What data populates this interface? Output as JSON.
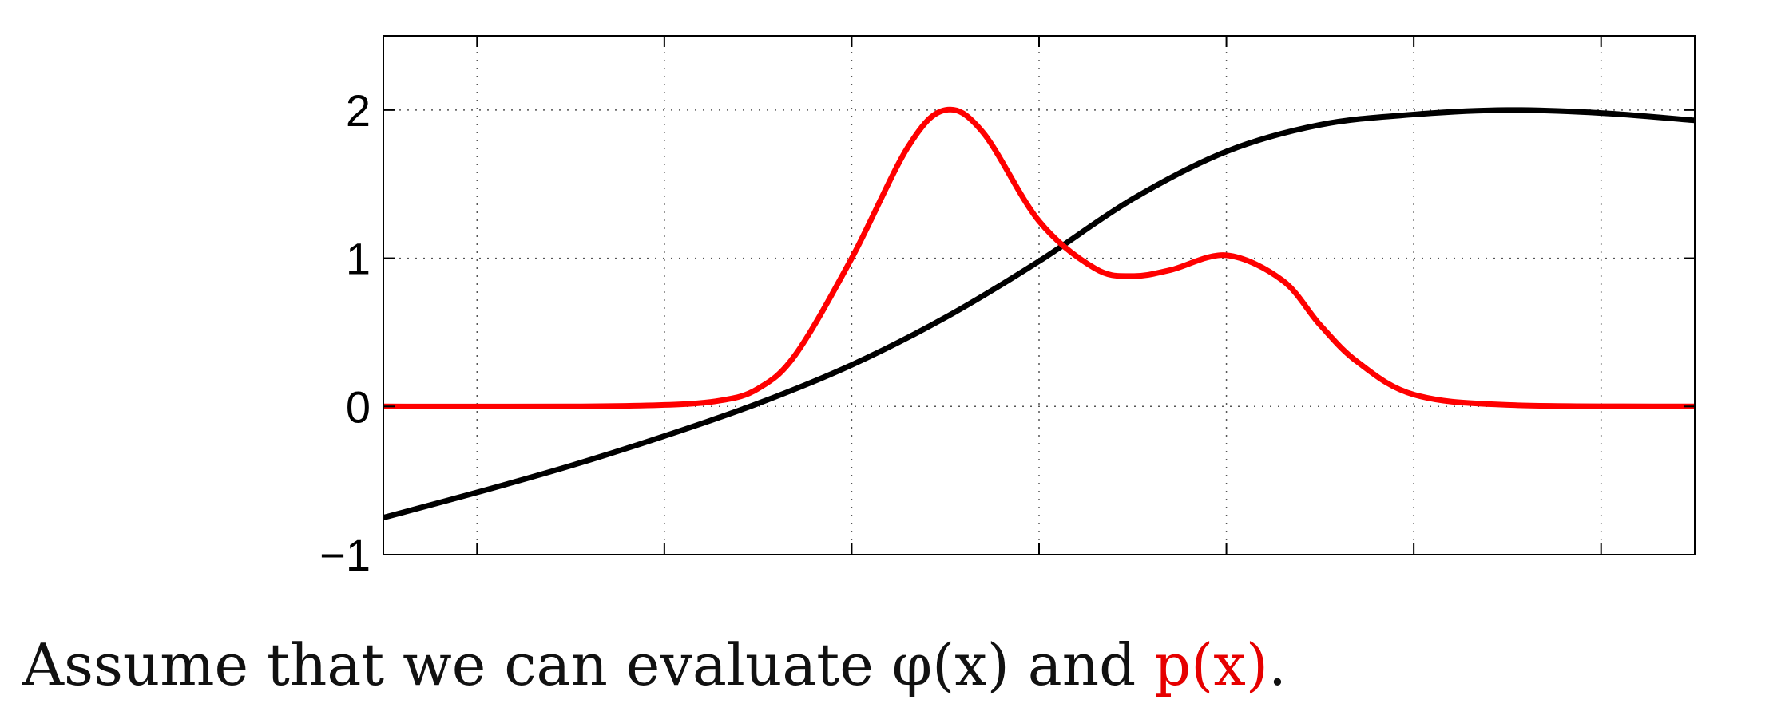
{
  "chart_data": {
    "type": "line",
    "title": "",
    "xlabel": "",
    "ylabel": "",
    "xlim": [
      0,
      7
    ],
    "ylim": [
      -1,
      2.5
    ],
    "x_ticks": [
      0.5,
      1.5,
      2.5,
      3.5,
      4.5,
      5.5,
      6.5
    ],
    "y_ticks": [
      -1,
      0,
      1,
      2
    ],
    "y_tick_labels": [
      "−1",
      "0",
      "1",
      "2"
    ],
    "grid": true,
    "grid_style": "dotted",
    "series": [
      {
        "name": "",
        "color": "#000000",
        "x": [
          0,
          0.5,
          1,
          1.5,
          2,
          2.5,
          3,
          3.5,
          4,
          4.5,
          5,
          5.5,
          6,
          6.5,
          7
        ],
        "y": [
          -0.75,
          -0.58,
          -0.4,
          -0.2,
          0.02,
          0.28,
          0.6,
          0.98,
          1.4,
          1.72,
          1.9,
          1.97,
          2.0,
          1.98,
          1.93
        ]
      },
      {
        "name": "",
        "color": "#ff0000",
        "x": [
          0,
          1,
          1.5,
          1.8,
          2.0,
          2.2,
          2.5,
          2.8,
          3.0,
          3.2,
          3.5,
          3.8,
          4.0,
          4.2,
          4.5,
          4.8,
          5.0,
          5.2,
          5.5,
          6,
          7
        ],
        "y": [
          0,
          0,
          0.01,
          0.04,
          0.12,
          0.35,
          1.0,
          1.75,
          2.0,
          1.85,
          1.25,
          0.93,
          0.88,
          0.92,
          1.02,
          0.85,
          0.55,
          0.3,
          0.08,
          0.01,
          0
        ]
      }
    ]
  },
  "caption": {
    "prefix": "Assume that we can evaluate ",
    "phi": "φ(x)",
    "middle": " and ",
    "p": "p(x)",
    "suffix": "."
  }
}
